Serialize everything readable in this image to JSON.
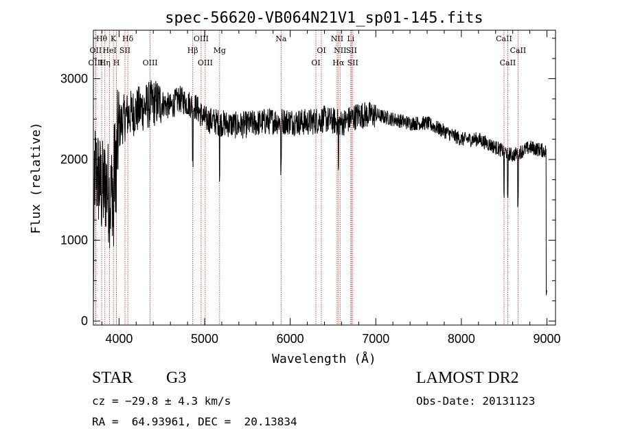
{
  "chart_data": {
    "type": "line",
    "title": "spec-56620-VB064N21V1_sp01-145.fits",
    "xlabel": "Wavelength (Å)",
    "ylabel": "Flux (relative)",
    "xlim": [
      3700,
      9100
    ],
    "ylim": [
      -50,
      3600
    ],
    "xticks": [
      4000,
      5000,
      6000,
      7000,
      8000,
      9000
    ],
    "yticks": [
      0,
      1000,
      2000,
      3000
    ],
    "grid": false,
    "series": [
      {
        "x": [
          3700,
          3750,
          3800,
          3850,
          3900,
          3950,
          4000,
          4050,
          4100,
          4200,
          4300,
          4400,
          4500,
          4600,
          4700,
          4800,
          4900,
          5000,
          5200,
          5400,
          5600,
          5800,
          6000,
          6200,
          6400,
          6600,
          6800,
          7000,
          7200,
          7400,
          7600,
          7800,
          8000,
          8200,
          8400,
          8600,
          8800,
          9000
        ],
        "y": [
          1900,
          1800,
          1600,
          1700,
          1500,
          1900,
          2400,
          2500,
          2550,
          2600,
          2650,
          2700,
          2700,
          2650,
          2750,
          2700,
          2650,
          2500,
          2450,
          2420,
          2450,
          2480,
          2470,
          2460,
          2500,
          2450,
          2550,
          2550,
          2500,
          2450,
          2450,
          2350,
          2250,
          2250,
          2150,
          2050,
          2150,
          2100
        ]
      }
    ],
    "spectral_lines": [
      {
        "label": "Hθ",
        "x": 3797,
        "row": 1
      },
      {
        "label": "OII",
        "x": 3727,
        "row": 2
      },
      {
        "label": "OIII",
        "x": 3727,
        "row": 3
      },
      {
        "label": "K",
        "x": 3934,
        "row": 1
      },
      {
        "label": "HeI",
        "x": 3889,
        "row": 2
      },
      {
        "label": "Hη",
        "x": 3835,
        "row": 3
      },
      {
        "label": "Hδ",
        "x": 4102,
        "row": 1
      },
      {
        "label": "SII",
        "x": 4069,
        "row": 2
      },
      {
        "label": "H",
        "x": 3969,
        "row": 3
      },
      {
        "label": "OIII",
        "x": 4363,
        "row": 3
      },
      {
        "label": "OIII",
        "x": 4959,
        "row": 1
      },
      {
        "label": "Hβ",
        "x": 4861,
        "row": 2
      },
      {
        "label": "OIII",
        "x": 5007,
        "row": 3
      },
      {
        "label": "Mg",
        "x": 5175,
        "row": 2
      },
      {
        "label": "Na",
        "x": 5893,
        "row": 1
      },
      {
        "label": "OI",
        "x": 6364,
        "row": 2
      },
      {
        "label": "OI",
        "x": 6300,
        "row": 3
      },
      {
        "label": "NII",
        "x": 6548,
        "row": 1
      },
      {
        "label": "NII",
        "x": 6583,
        "row": 2
      },
      {
        "label": "Hα",
        "x": 6563,
        "row": 3
      },
      {
        "label": "Li",
        "x": 6708,
        "row": 1
      },
      {
        "label": "SII",
        "x": 6716,
        "row": 2
      },
      {
        "label": "SII",
        "x": 6731,
        "row": 3
      },
      {
        "label": "CaII",
        "x": 8498,
        "row": 1
      },
      {
        "label": "CaII",
        "x": 8662,
        "row": 2
      },
      {
        "label": "CaII",
        "x": 8542,
        "row": 3
      }
    ]
  },
  "info": {
    "object_class": "STAR",
    "subclass": "G3",
    "survey": "LAMOST DR2",
    "cz": "cz = −29.8 ± 4.3 km/s",
    "coords": "RA =  64.93961, DEC =  20.13834",
    "obs_date": "Obs-Date: 20131123"
  },
  "colors": {
    "spectrum": "#000000",
    "line_markers": "#b22222"
  }
}
